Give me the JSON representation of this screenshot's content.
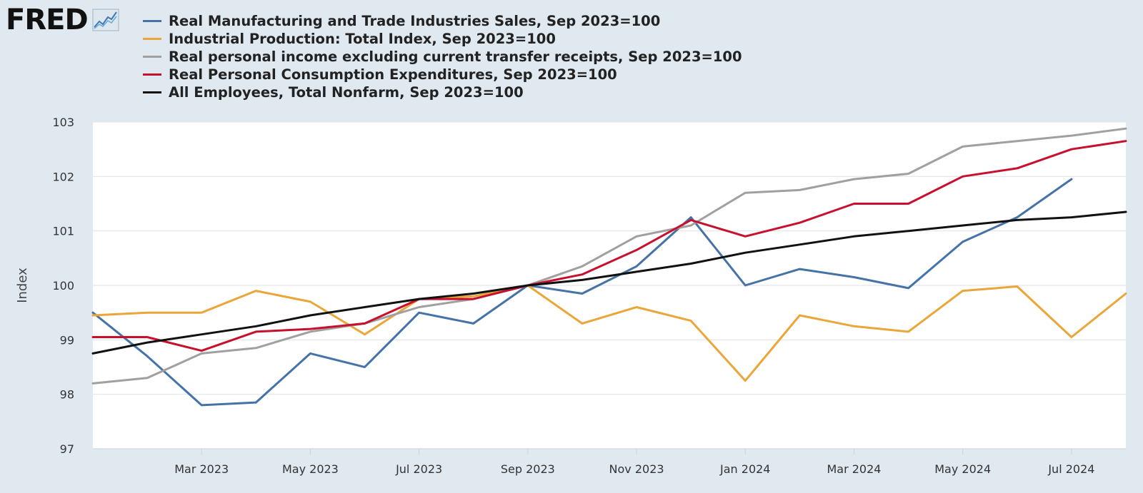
{
  "logo": {
    "text": "FRED"
  },
  "chart_data": {
    "type": "line",
    "title": "",
    "xlabel": "",
    "ylabel": "Index",
    "ylim": [
      97,
      103
    ],
    "y_ticks": [
      97,
      98,
      99,
      100,
      101,
      102,
      103
    ],
    "x_range": [
      "2023-01",
      "2024-08"
    ],
    "x_ticks": [
      {
        "date": "2023-03",
        "label": "Mar 2023"
      },
      {
        "date": "2023-05",
        "label": "May 2023"
      },
      {
        "date": "2023-07",
        "label": "Jul 2023"
      },
      {
        "date": "2023-09",
        "label": "Sep 2023"
      },
      {
        "date": "2023-11",
        "label": "Nov 2023"
      },
      {
        "date": "2024-01",
        "label": "Jan 2024"
      },
      {
        "date": "2024-03",
        "label": "Mar 2024"
      },
      {
        "date": "2024-05",
        "label": "May 2024"
      },
      {
        "date": "2024-07",
        "label": "Jul 2024"
      }
    ],
    "grid": true,
    "legend_position": "top",
    "x": [
      "2023-01",
      "2023-02",
      "2023-03",
      "2023-04",
      "2023-05",
      "2023-06",
      "2023-07",
      "2023-08",
      "2023-09",
      "2023-10",
      "2023-11",
      "2023-12",
      "2024-01",
      "2024-02",
      "2024-03",
      "2024-04",
      "2024-05",
      "2024-06",
      "2024-07",
      "2024-08"
    ],
    "series": [
      {
        "name": "Real Manufacturing and Trade Industries Sales, Sep 2023=100",
        "color": "#4572a7",
        "values": [
          99.5,
          98.7,
          97.8,
          97.85,
          98.75,
          98.5,
          99.5,
          99.3,
          100.0,
          99.85,
          100.35,
          101.25,
          100.0,
          100.3,
          100.15,
          99.95,
          100.8,
          101.25,
          101.95,
          null
        ]
      },
      {
        "name": "Industrial Production: Total Index, Sep 2023=100",
        "color": "#eba63a",
        "values": [
          99.45,
          99.5,
          99.5,
          99.9,
          99.7,
          99.1,
          99.75,
          99.8,
          100.0,
          99.3,
          99.6,
          99.35,
          98.25,
          99.45,
          99.25,
          99.15,
          99.9,
          99.98,
          99.05,
          99.85
        ]
      },
      {
        "name": "Real personal income excluding current transfer receipts, Sep 2023=100",
        "color": "#a0a0a0",
        "values": [
          98.2,
          98.3,
          98.75,
          98.85,
          99.15,
          99.3,
          99.6,
          99.75,
          100.0,
          100.35,
          100.9,
          101.1,
          101.7,
          101.75,
          101.95,
          102.05,
          102.55,
          102.65,
          102.75,
          102.88
        ]
      },
      {
        "name": "Real Personal Consumption Expenditures, Sep 2023=100",
        "color": "#c8102e",
        "values": [
          99.05,
          99.05,
          98.8,
          99.15,
          99.2,
          99.3,
          99.75,
          99.75,
          100.0,
          100.2,
          100.65,
          101.2,
          100.9,
          101.15,
          101.5,
          101.5,
          102.0,
          102.15,
          102.5,
          102.65
        ]
      },
      {
        "name": "All Employees, Total Nonfarm, Sep 2023=100",
        "color": "#111111",
        "values": [
          98.75,
          98.95,
          99.1,
          99.25,
          99.45,
          99.6,
          99.75,
          99.85,
          100.0,
          100.1,
          100.25,
          100.4,
          100.6,
          100.75,
          100.9,
          101.0,
          101.1,
          101.2,
          101.25,
          101.35
        ]
      }
    ]
  }
}
